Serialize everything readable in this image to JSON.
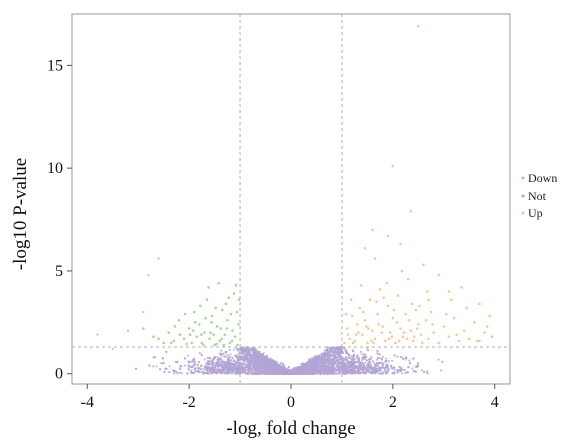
{
  "chart_data": {
    "type": "scatter",
    "title": "",
    "xlabel": "-log, fold change",
    "ylabel": "-log10 P-value",
    "xlim": [
      -4.3,
      4.3
    ],
    "ylim": [
      -0.5,
      17.5
    ],
    "x_ticks": [
      -4,
      -2,
      0,
      2,
      4
    ],
    "y_ticks": [
      0,
      5,
      10,
      15
    ],
    "x_tick_labels": [
      "-4",
      "-2",
      "0",
      "2",
      "4"
    ],
    "y_tick_labels": [
      "0",
      "5",
      "10",
      "15"
    ],
    "grid": false,
    "legend_position": "right",
    "thresholds": {
      "fold_change": [
        -1,
        1
      ],
      "pvalue": 1.3
    },
    "series": [
      {
        "name": "Down",
        "color": "#9ed48a",
        "points": [
          [
            -1.05,
            1.4
          ],
          [
            -1.1,
            1.8
          ],
          [
            -1.15,
            2.1
          ],
          [
            -1.2,
            1.5
          ],
          [
            -1.25,
            2.6
          ],
          [
            -1.3,
            1.9
          ],
          [
            -1.35,
            3.1
          ],
          [
            -1.4,
            1.6
          ],
          [
            -1.45,
            2.3
          ],
          [
            -1.5,
            1.4
          ],
          [
            -1.55,
            2.8
          ],
          [
            -1.6,
            1.7
          ],
          [
            -1.65,
            3.6
          ],
          [
            -1.7,
            2.0
          ],
          [
            -1.75,
            1.5
          ],
          [
            -1.8,
            2.4
          ],
          [
            -1.85,
            1.8
          ],
          [
            -1.9,
            3.0
          ],
          [
            -1.95,
            1.5
          ],
          [
            -2.0,
            2.2
          ],
          [
            -2.1,
            1.7
          ],
          [
            -2.2,
            2.6
          ],
          [
            -2.3,
            1.6
          ],
          [
            -2.4,
            2.0
          ],
          [
            -2.5,
            1.5
          ],
          [
            -2.7,
            1.8
          ],
          [
            -2.9,
            2.2
          ],
          [
            -1.12,
            3.9
          ],
          [
            -1.08,
            4.3
          ],
          [
            -1.02,
            3.6
          ],
          [
            -1.18,
            2.9
          ],
          [
            -1.28,
            3.4
          ],
          [
            -1.38,
            2.2
          ],
          [
            -1.48,
            3.2
          ],
          [
            -1.58,
            2.0
          ],
          [
            -1.68,
            2.7
          ],
          [
            -1.78,
            3.3
          ],
          [
            -1.88,
            2.5
          ],
          [
            -1.98,
            1.9
          ],
          [
            -2.08,
            2.9
          ],
          [
            -2.18,
            1.9
          ],
          [
            -2.28,
            2.3
          ],
          [
            -1.03,
            2.4
          ],
          [
            -1.06,
            3.0
          ],
          [
            -1.22,
            3.7
          ],
          [
            -1.42,
            4.4
          ],
          [
            -1.62,
            4.2
          ],
          [
            -1.32,
            1.4
          ],
          [
            -1.52,
            1.9
          ],
          [
            -1.72,
            1.4
          ],
          [
            -1.92,
            2.1
          ],
          [
            -1.16,
            1.6
          ],
          [
            -1.26,
            2.2
          ],
          [
            -1.36,
            1.7
          ],
          [
            -1.46,
            1.45
          ],
          [
            -1.56,
            2.5
          ],
          [
            -1.76,
            1.9
          ],
          [
            -2.05,
            1.45
          ],
          [
            -2.35,
            1.5
          ],
          [
            -2.6,
            1.7
          ]
        ]
      },
      {
        "name": "Not",
        "color": "#b3a4d6",
        "points": []
      },
      {
        "name": "Up",
        "color": "#f3c58d",
        "points": [
          [
            1.05,
            1.5
          ],
          [
            1.1,
            2.2
          ],
          [
            1.15,
            1.7
          ],
          [
            1.2,
            2.8
          ],
          [
            1.25,
            1.6
          ],
          [
            1.3,
            2.4
          ],
          [
            1.35,
            3.2
          ],
          [
            1.4,
            1.9
          ],
          [
            1.45,
            2.6
          ],
          [
            1.5,
            1.5
          ],
          [
            1.55,
            3.6
          ],
          [
            1.6,
            2.1
          ],
          [
            1.65,
            1.7
          ],
          [
            1.7,
            2.9
          ],
          [
            1.75,
            4.1
          ],
          [
            1.8,
            2.3
          ],
          [
            1.85,
            1.6
          ],
          [
            1.9,
            3.3
          ],
          [
            1.95,
            2.0
          ],
          [
            2.0,
            2.7
          ],
          [
            2.05,
            1.5
          ],
          [
            2.1,
            3.8
          ],
          [
            2.15,
            2.2
          ],
          [
            2.2,
            1.8
          ],
          [
            2.25,
            2.9
          ],
          [
            2.3,
            4.6
          ],
          [
            2.35,
            2.1
          ],
          [
            2.4,
            1.6
          ],
          [
            2.45,
            3.1
          ],
          [
            2.5,
            2.4
          ],
          [
            2.55,
            1.9
          ],
          [
            2.6,
            5.3
          ],
          [
            2.65,
            2.6
          ],
          [
            2.7,
            1.7
          ],
          [
            2.75,
            3.0
          ],
          [
            2.8,
            2.0
          ],
          [
            2.9,
            1.5
          ],
          [
            3.0,
            2.3
          ],
          [
            3.1,
            1.8
          ],
          [
            3.2,
            2.7
          ],
          [
            3.3,
            1.6
          ],
          [
            3.4,
            2.1
          ],
          [
            3.5,
            1.7
          ],
          [
            3.6,
            2.5
          ],
          [
            3.7,
            1.6
          ],
          [
            3.8,
            2.0
          ],
          [
            3.9,
            2.8
          ],
          [
            1.08,
            2.9
          ],
          [
            1.18,
            3.6
          ],
          [
            1.28,
            1.9
          ],
          [
            1.38,
            4.3
          ],
          [
            1.48,
            2.3
          ],
          [
            1.58,
            1.6
          ],
          [
            1.68,
            3.5
          ],
          [
            1.78,
            2.0
          ],
          [
            1.88,
            4.4
          ],
          [
            1.98,
            1.8
          ],
          [
            2.08,
            2.5
          ],
          [
            2.18,
            5.0
          ],
          [
            2.28,
            1.7
          ],
          [
            2.38,
            3.4
          ],
          [
            2.48,
            2.2
          ],
          [
            2.58,
            1.5
          ],
          [
            2.68,
            4.0
          ],
          [
            2.78,
            2.4
          ],
          [
            1.12,
            1.9
          ],
          [
            1.22,
            1.5
          ],
          [
            1.32,
            2.0
          ],
          [
            1.42,
            3.0
          ],
          [
            1.52,
            2.2
          ],
          [
            1.62,
            1.5
          ],
          [
            1.72,
            2.4
          ],
          [
            1.82,
            3.7
          ],
          [
            1.92,
            1.7
          ],
          [
            2.02,
            3.1
          ],
          [
            2.12,
            1.6
          ],
          [
            2.22,
            2.0
          ],
          [
            2.32,
            2.6
          ],
          [
            2.42,
            1.8
          ],
          [
            2.52,
            3.3
          ],
          [
            3.05,
            2.9
          ],
          [
            3.25,
            1.9
          ],
          [
            3.45,
            3.2
          ],
          [
            3.65,
            1.6
          ],
          [
            3.85,
            2.3
          ],
          [
            3.95,
            1.8
          ],
          [
            1.45,
            6.1
          ],
          [
            1.6,
            7.0
          ],
          [
            2.0,
            10.1
          ],
          [
            2.5,
            16.9
          ],
          [
            2.35,
            7.9
          ],
          [
            1.9,
            6.7
          ],
          [
            1.65,
            5.6
          ],
          [
            2.15,
            6.3
          ],
          [
            3.1,
            4.0
          ],
          [
            3.35,
            4.2
          ],
          [
            2.9,
            4.8
          ],
          [
            3.7,
            3.4
          ],
          [
            2.7,
            3.6
          ],
          [
            3.15,
            3.6
          ]
        ]
      }
    ],
    "background_cloud": {
      "note_series": "Not",
      "extra_points": [
        [
          -2.8,
          4.8
        ],
        [
          -2.6,
          5.6
        ],
        [
          -3.8,
          1.9
        ],
        [
          -3.5,
          1.2
        ],
        [
          -2.9,
          3.0
        ],
        [
          -3.2,
          2.1
        ]
      ]
    }
  }
}
